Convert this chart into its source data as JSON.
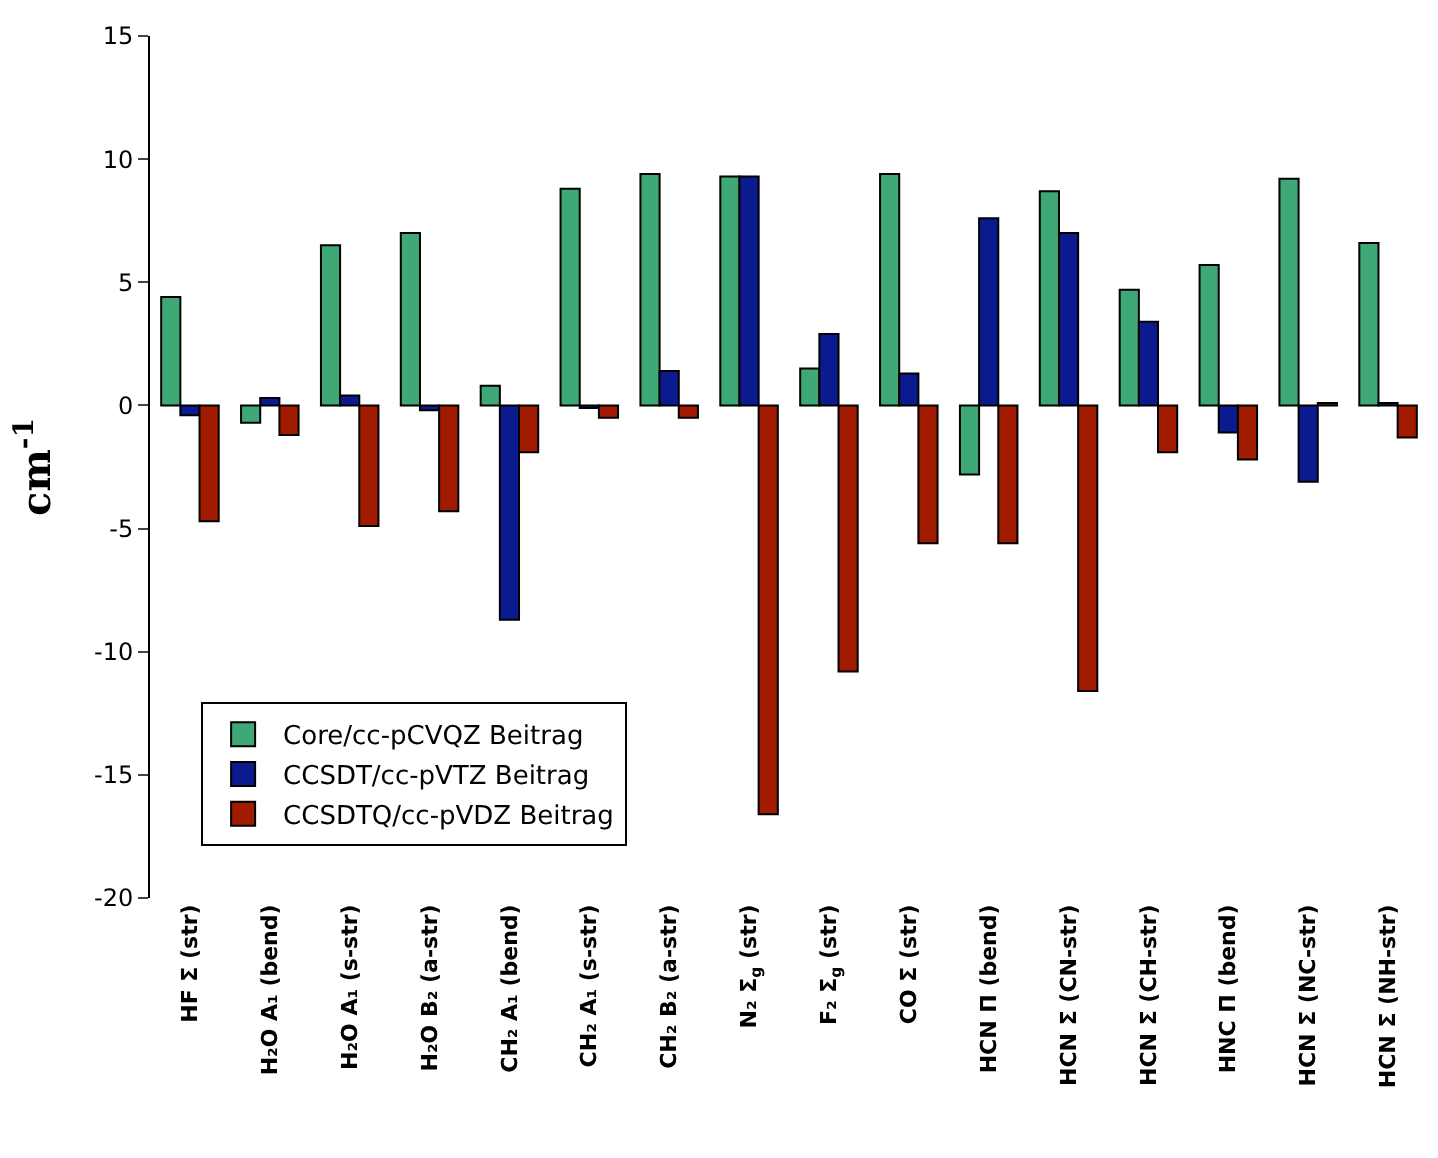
{
  "chart_data": {
    "type": "bar",
    "ylabel": "cm$^{-1}$",
    "categories": [
      "HF Σ (str)",
      "H₂O A₁ (bend)",
      "H₂O A₁ (s-str)",
      "H₂O B₂ (a-str)",
      "CH₂ A₁ (bend)",
      "CH₂ A₁ (s-str)",
      "CH₂ B₂ (a-str)",
      "N₂ Σ$_{g}$ (str)",
      "F₂ Σ$_{g}$ (str)",
      "CO Σ (str)",
      "HCN Π (bend)",
      "HCN Σ (CN-str)",
      "HCN Σ (CH-str)",
      "HNC Π (bend)",
      "HCN Σ (NC-str)",
      "HCN Σ (NH-str)"
    ],
    "series": [
      {
        "name": "Core/cc-pCVQZ Beitrag",
        "color": "#3fa877",
        "values": [
          4.4,
          -0.7,
          6.5,
          7.0,
          0.8,
          8.8,
          9.4,
          9.3,
          1.5,
          9.4,
          -2.8,
          8.7,
          4.7,
          5.7,
          9.2,
          6.6
        ]
      },
      {
        "name": "CCSDT/cc-pVTZ Beitrag",
        "color": "#0b1a8f",
        "values": [
          -0.4,
          0.3,
          0.4,
          -0.2,
          -8.7,
          -0.1,
          1.4,
          9.3,
          2.9,
          1.3,
          7.6,
          7.0,
          3.4,
          -1.1,
          -3.1,
          0.1
        ]
      },
      {
        "name": "CCSDTQ/cc-pVDZ Beitrag",
        "color": "#a01b00",
        "values": [
          -4.7,
          -1.2,
          -4.9,
          -4.3,
          -1.9,
          -0.5,
          -0.5,
          -16.6,
          -10.8,
          -5.6,
          -5.6,
          -11.6,
          -1.9,
          -2.2,
          0.1,
          -1.3
        ]
      }
    ],
    "ylim": [
      -20,
      15
    ],
    "yticks": [
      -20,
      -15,
      -10,
      -5,
      0,
      5,
      10,
      15
    ],
    "grid": false,
    "legend": "bottom left"
  }
}
